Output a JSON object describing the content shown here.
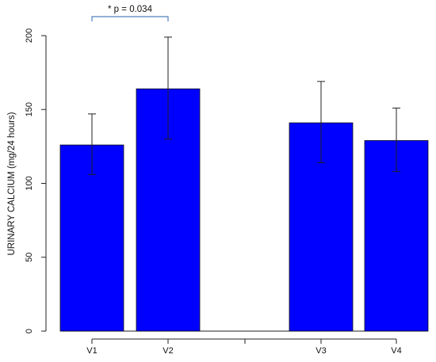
{
  "chart_data": {
    "type": "bar",
    "categories": [
      "V1",
      "V2",
      "",
      "V3",
      "V4"
    ],
    "series": [
      {
        "values": [
          126,
          164,
          0,
          141,
          129
        ],
        "error_low": [
          106,
          130,
          null,
          114,
          108
        ],
        "error_high": [
          147,
          199,
          null,
          169,
          151
        ],
        "color": "#0000ff"
      }
    ],
    "title": "",
    "xlabel": "",
    "ylabel": "URINARY CALCIUM (mg/24 hours)",
    "ylim": [
      0,
      200
    ],
    "yticks": [
      0,
      50,
      100,
      150,
      200
    ],
    "grid": false,
    "annotations": [
      {
        "text": "* p = 0.034",
        "from_category": "V1",
        "to_category": "V2",
        "bracket_color": "#4f81bd"
      }
    ]
  }
}
